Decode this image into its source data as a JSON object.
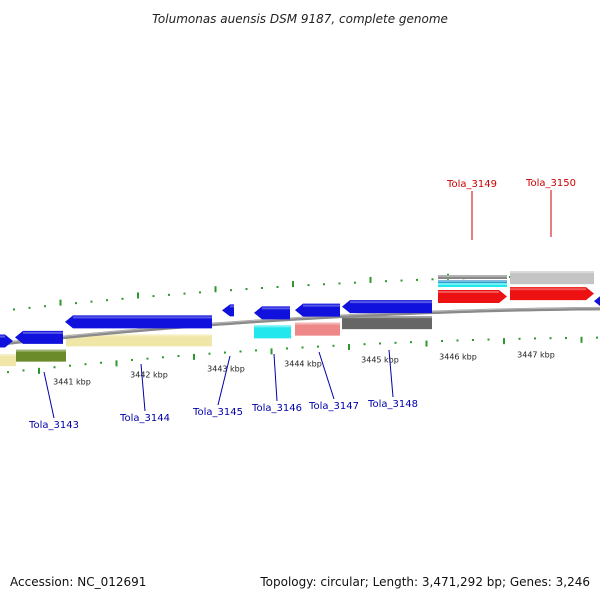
{
  "title": "Tolumonas auensis DSM 9187, complete genome",
  "footer": {
    "accession": "Accession: NC_012691",
    "topology": "Topology: circular; Length: 3,471,292 bp; Genes: 3,246"
  },
  "colors": {
    "backbone": "#8a8a8a",
    "gene_blue": "#1111dd",
    "gene_red": "#ee1111",
    "tick": "#2a9a2a",
    "label_blue": "#0000aa",
    "label_red": "#cc0000",
    "track_yellow": "#f0e6a8",
    "track_olive": "#6b8a2a",
    "cyan": "#22e8ee",
    "pink": "#ee8888",
    "grey_dark": "#666666",
    "grey_light": "#c4c4c4"
  },
  "kbp_labels": [
    "3441 kbp",
    "3442 kbp",
    "3443 kbp",
    "3444 kbp",
    "3445 kbp",
    "3446 kbp",
    "3447 kbp"
  ],
  "gene_labels": [
    {
      "name": "Tola_3143",
      "color": "blue"
    },
    {
      "name": "Tola_3144",
      "color": "blue"
    },
    {
      "name": "Tola_3145",
      "color": "blue"
    },
    {
      "name": "Tola_3146",
      "color": "blue"
    },
    {
      "name": "Tola_3147",
      "color": "blue"
    },
    {
      "name": "Tola_3148",
      "color": "blue"
    },
    {
      "name": "Tola_3149",
      "color": "red"
    },
    {
      "name": "Tola_3150",
      "color": "red"
    }
  ]
}
